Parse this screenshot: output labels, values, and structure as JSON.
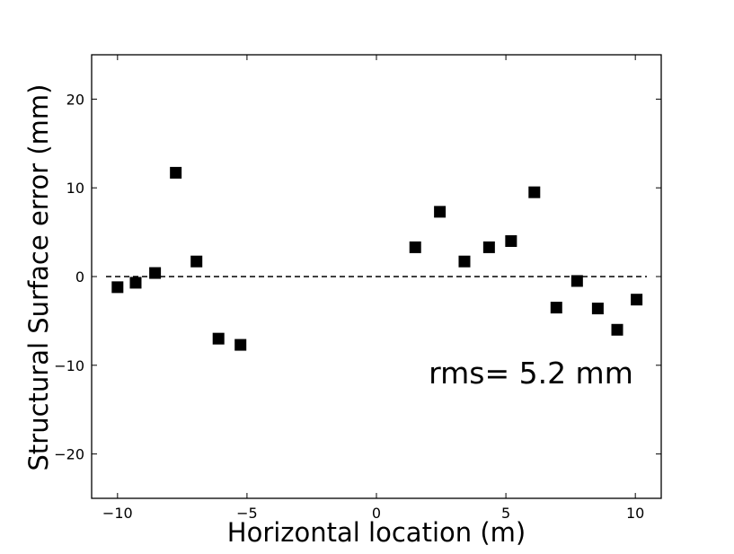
{
  "chart_data": {
    "type": "scatter",
    "xlabel": "Horizontal location (m)",
    "ylabel": "Structural Surface error (mm)",
    "xlim": [
      -11,
      11
    ],
    "ylim": [
      -25,
      25
    ],
    "xticks": [
      -10,
      -5,
      0,
      5,
      10
    ],
    "yticks": [
      -20,
      -10,
      0,
      10,
      20
    ],
    "xtick_labels": [
      "−10",
      "−5",
      "0",
      "5",
      "10"
    ],
    "ytick_labels": [
      "−20",
      "−10",
      "0",
      "10",
      "20"
    ],
    "reference_line": {
      "y": 0,
      "style": "dashed"
    },
    "marker": {
      "shape": "square",
      "color": "#000000"
    },
    "annotation": "rms= 5.2 mm",
    "grid": false,
    "points": [
      {
        "x": -10.0,
        "y": -1.2
      },
      {
        "x": -9.3,
        "y": -0.7
      },
      {
        "x": -8.55,
        "y": 0.4
      },
      {
        "x": -7.75,
        "y": 11.7
      },
      {
        "x": -6.95,
        "y": 1.7
      },
      {
        "x": -6.1,
        "y": -7.0
      },
      {
        "x": -5.25,
        "y": -7.7
      },
      {
        "x": 1.5,
        "y": 3.3
      },
      {
        "x": 2.45,
        "y": 7.3
      },
      {
        "x": 3.4,
        "y": 1.7
      },
      {
        "x": 4.35,
        "y": 3.3
      },
      {
        "x": 5.2,
        "y": 4.0
      },
      {
        "x": 6.1,
        "y": 9.5
      },
      {
        "x": 6.95,
        "y": -3.5
      },
      {
        "x": 7.75,
        "y": -0.5
      },
      {
        "x": 8.55,
        "y": -3.6
      },
      {
        "x": 9.3,
        "y": -6.0
      },
      {
        "x": 10.05,
        "y": -2.6
      }
    ]
  }
}
